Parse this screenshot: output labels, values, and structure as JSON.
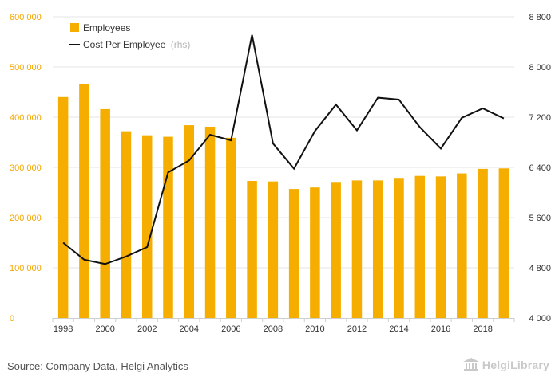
{
  "chart_data": {
    "type": "bar+line",
    "categories": [
      "1998",
      "1999",
      "2000",
      "2001",
      "2002",
      "2003",
      "2004",
      "2005",
      "2006",
      "2007",
      "2008",
      "2009",
      "2010",
      "2011",
      "2012",
      "2013",
      "2014",
      "2015",
      "2016",
      "2017",
      "2018",
      "2019"
    ],
    "series": [
      {
        "name": "Employees",
        "type": "bar",
        "axis": "left",
        "color": "#f5ae00",
        "values": [
          440000,
          466000,
          416000,
          372000,
          364000,
          361000,
          384000,
          381000,
          359000,
          273000,
          272000,
          257000,
          260000,
          271000,
          274000,
          274000,
          279000,
          283000,
          282000,
          288000,
          297000,
          298000
        ]
      },
      {
        "name": "Cost Per Employee",
        "type": "line",
        "axis": "right",
        "color": "#111111",
        "values": [
          5200,
          4930,
          4860,
          4980,
          5130,
          6320,
          6510,
          6920,
          6830,
          8510,
          6780,
          6380,
          6980,
          7400,
          6990,
          7510,
          7480,
          7040,
          6700,
          7190,
          7340,
          7180
        ]
      }
    ],
    "y_left": {
      "min": 0,
      "max": 600000,
      "ticks": [
        0,
        100000,
        200000,
        300000,
        400000,
        500000,
        600000
      ],
      "tick_labels": [
        "0",
        "100 000",
        "200 000",
        "300 000",
        "400 000",
        "500 000",
        "600 000"
      ]
    },
    "y_right": {
      "min": 4000,
      "max": 8800,
      "ticks": [
        4000,
        4800,
        5600,
        6400,
        7200,
        8000,
        8800
      ],
      "tick_labels": [
        "4 000",
        "4 800",
        "5 600",
        "6 400",
        "7 200",
        "8 000",
        "8 800"
      ]
    },
    "x_tick_labels": [
      "1998",
      "2000",
      "2002",
      "2004",
      "2006",
      "2008",
      "2010",
      "2012",
      "2014",
      "2016",
      "2018"
    ],
    "legend": {
      "position": "top-left",
      "items": [
        {
          "label": "Employees",
          "note": ""
        },
        {
          "label": "Cost Per Employee",
          "note": "(rhs)"
        }
      ]
    },
    "grid": "horizontal",
    "colors": {
      "bar": "#f5ae00",
      "line": "#111111",
      "left_axis_text": "#f5a800",
      "grid": "#e6e6e6"
    }
  },
  "footer": {
    "source": "Source: Company Data, Helgi Analytics",
    "brand": "HelgiLibrary"
  }
}
